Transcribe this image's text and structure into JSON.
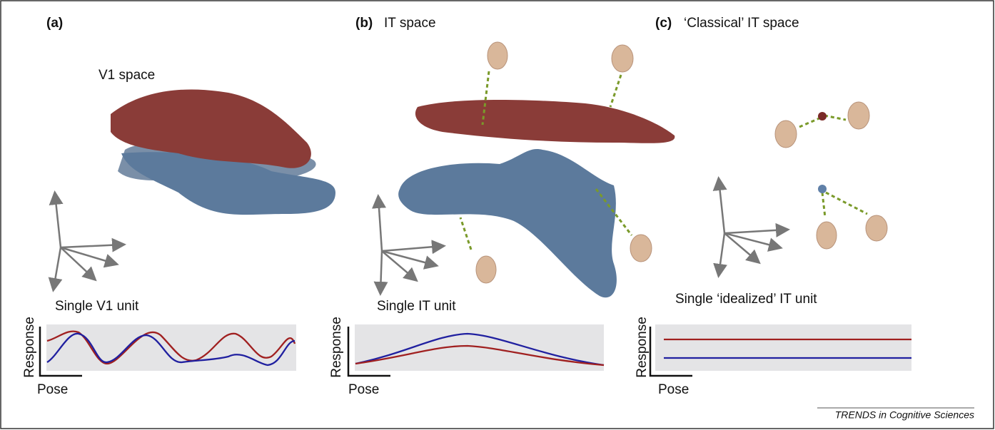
{
  "panels": [
    {
      "label": "(a)",
      "space": "V1 space",
      "unit": "Single V1 unit",
      "y_axis": "Response",
      "x_axis": "Pose"
    },
    {
      "label": "(b)",
      "title": "IT space",
      "unit": "Single IT unit",
      "y_axis": "Response",
      "x_axis": "Pose"
    },
    {
      "label": "(c)",
      "title": "‘Classical’ IT space",
      "unit": "Single ‘idealized’ IT unit",
      "y_axis": "Response",
      "x_axis": "Pose"
    }
  ],
  "footer": "TRENDS in Cognitive Sciences"
}
